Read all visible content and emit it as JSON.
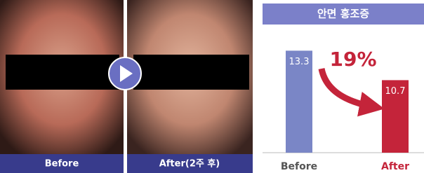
{
  "photos": {
    "before_label": "Before",
    "after_label": "After(2주 후)"
  },
  "chart_data": {
    "type": "bar",
    "title": "안면 홍조증",
    "categories": [
      "Before",
      "After"
    ],
    "values": [
      13.3,
      10.7
    ],
    "colors": [
      "#7a86c6",
      "#c4243a"
    ],
    "ylim": [
      4.3,
      15.3
    ],
    "annotation": "19%"
  }
}
